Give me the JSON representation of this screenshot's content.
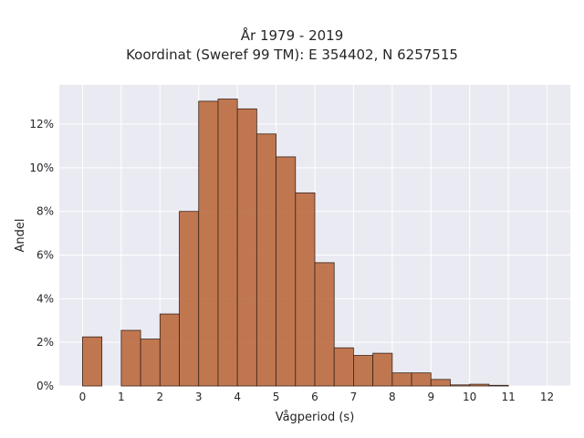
{
  "chart_data": {
    "type": "bar",
    "title": "År 1979 - 2019",
    "subtitle": "Koordinat (Sweref 99 TM): E 354402, N 6257515",
    "xlabel": "Vågperiod (s)",
    "ylabel": "Andel",
    "xlim": [
      -0.6,
      12.6
    ],
    "ylim": [
      0,
      13.8
    ],
    "x_ticks": [
      0,
      1,
      2,
      3,
      4,
      5,
      6,
      7,
      8,
      9,
      10,
      11,
      12
    ],
    "y_ticks": [
      0,
      2,
      4,
      6,
      8,
      10,
      12
    ],
    "y_tick_format": "percent",
    "bin_width": 0.5,
    "bin_starts": [
      0,
      0.5,
      1,
      1.5,
      2,
      2.5,
      3,
      3.5,
      4,
      4.5,
      5,
      5.5,
      6,
      6.5,
      7,
      7.5,
      8,
      8.5,
      9,
      9.5,
      10,
      10.5,
      11,
      11.5
    ],
    "values": [
      2.25,
      0,
      2.55,
      2.15,
      3.3,
      8.0,
      13.05,
      13.15,
      12.7,
      11.55,
      10.5,
      8.85,
      5.65,
      1.75,
      1.4,
      1.5,
      0.6,
      0.6,
      0.3,
      0.05,
      0.08,
      0.03,
      0,
      0
    ],
    "bar_color": "#bb6a3e",
    "bar_edge_color": "#3a2418",
    "background": "#eaeaf2",
    "grid": true
  }
}
